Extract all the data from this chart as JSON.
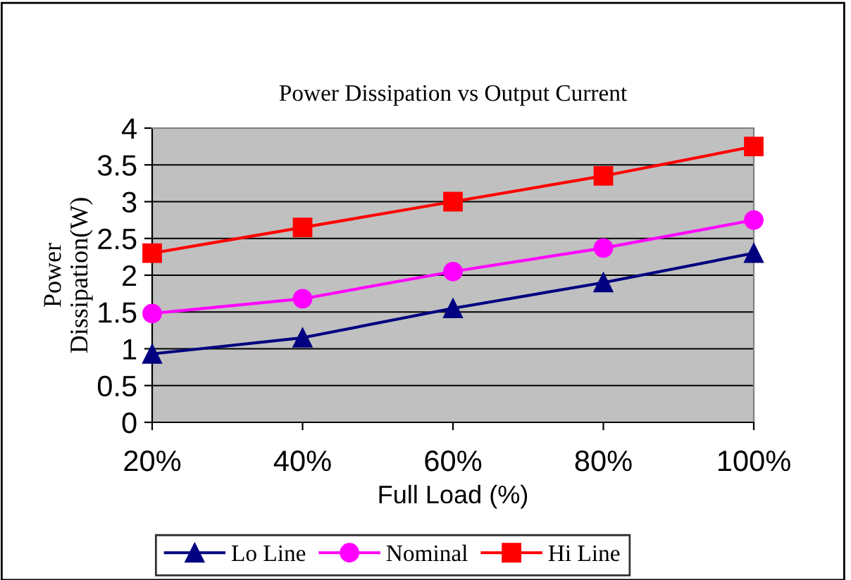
{
  "chart_data": {
    "type": "line",
    "title": "Power Dissipation vs Output Current",
    "xlabel": "Full Load (%)",
    "ylabel": "Power\nDissipation(W)",
    "categories": [
      "20%",
      "40%",
      "60%",
      "80%",
      "100%"
    ],
    "series": [
      {
        "name": "Lo Line",
        "color": "#000080",
        "marker": "triangle",
        "values": [
          0.93,
          1.15,
          1.55,
          1.9,
          2.3
        ]
      },
      {
        "name": "Nominal",
        "color": "#ff00ff",
        "marker": "circle",
        "values": [
          1.48,
          1.68,
          2.05,
          2.37,
          2.75
        ]
      },
      {
        "name": "Hi Line",
        "color": "#ff0000",
        "marker": "square",
        "values": [
          2.3,
          2.65,
          3.0,
          3.35,
          3.75
        ]
      }
    ],
    "ylim": [
      0,
      4
    ],
    "yticks": [
      0,
      0.5,
      1,
      1.5,
      2,
      2.5,
      3,
      3.5,
      4
    ],
    "grid": "y",
    "legend": "bottom",
    "line_style": "solid"
  }
}
